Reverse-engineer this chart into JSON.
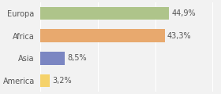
{
  "categories": [
    "America",
    "Asia",
    "Africa",
    "Europa"
  ],
  "values": [
    3.2,
    8.5,
    43.3,
    44.9
  ],
  "bar_colors": [
    "#f5d26b",
    "#7b86c2",
    "#e8a96e",
    "#aec48a"
  ],
  "labels": [
    "3,2%",
    "8,5%",
    "43,3%",
    "44,9%"
  ],
  "xlim": [
    0,
    62
  ],
  "background_color": "#f2f2f2",
  "bar_height": 0.58,
  "label_fontsize": 7.0,
  "ytick_fontsize": 7.0
}
